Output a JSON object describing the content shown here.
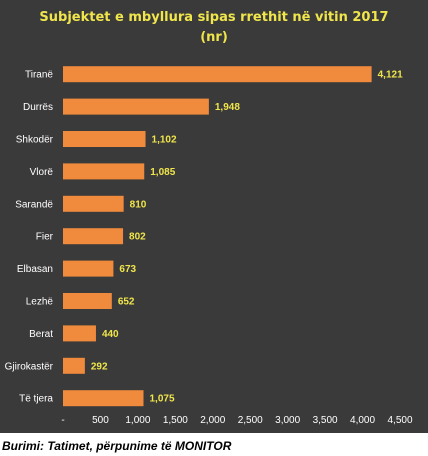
{
  "chart_data": {
    "type": "bar",
    "orientation": "horizontal",
    "title": "Subjektet e mbyllura sipas rrethit në vitin 2017",
    "subtitle": "(nr)",
    "categories": [
      "Tiranë",
      "Durrës",
      "Shkodër",
      "Vlorë",
      "Sarandë",
      "Fier",
      "Elbasan",
      "Lezhë",
      "Berat",
      "Gjirokastër",
      "Të tjera"
    ],
    "values": [
      4121,
      1948,
      1102,
      1085,
      810,
      802,
      673,
      652,
      440,
      292,
      1075
    ],
    "value_labels": [
      "4,121",
      "1,948",
      "1,102",
      "1,085",
      "810",
      "802",
      "673",
      "652",
      "440",
      "292",
      "1,075"
    ],
    "x_ticks": [
      "-",
      "500",
      "1,000",
      "1,500",
      "2,000",
      "2,500",
      "3,000",
      "3,500",
      "4,000",
      "4,500"
    ],
    "xlim": [
      0,
      4500
    ],
    "grid": false,
    "legend": "none"
  },
  "source": "Burimi: Tatimet, përpunime të MONITOR",
  "colors": {
    "background": "#3a3a3a",
    "bar": "#f08a3c",
    "title": "#f0e64b",
    "value_label": "#f0e64b",
    "axis_text": "#ffffff"
  }
}
